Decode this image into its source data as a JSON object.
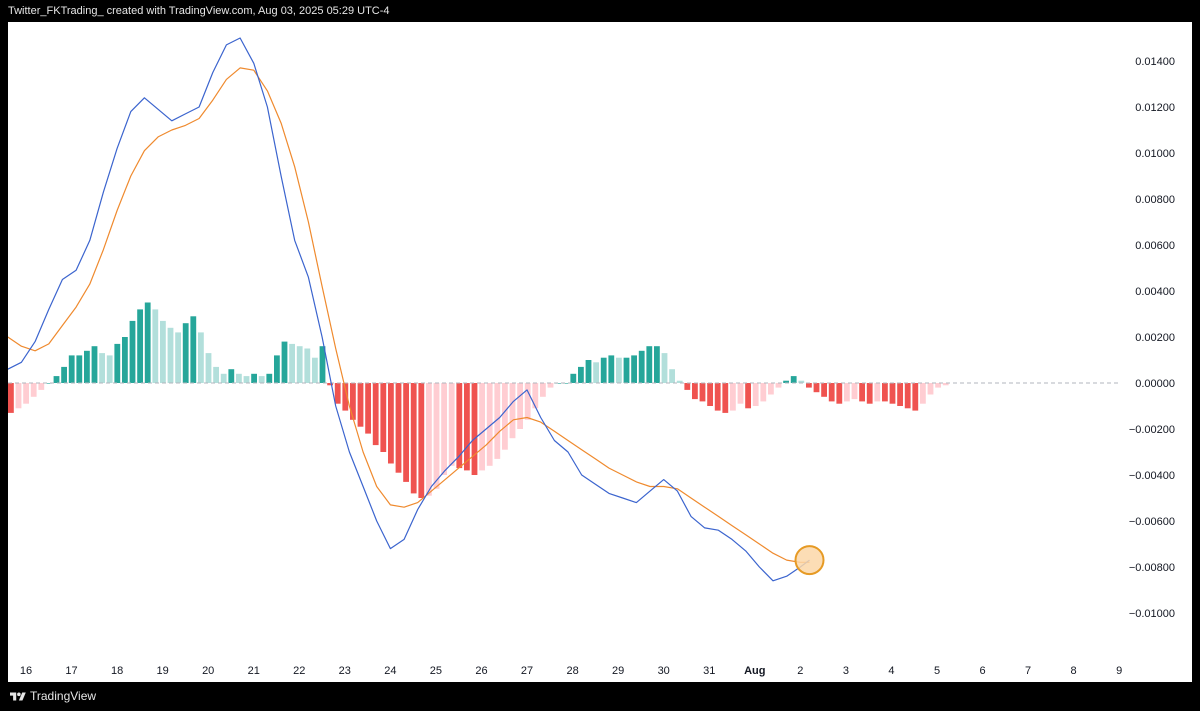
{
  "header": {
    "title": "Twitter_FKTrading_ created with TradingView.com, Aug 03, 2025 05:29 UTC-4"
  },
  "footer": {
    "brand": "TradingView"
  },
  "colors": {
    "macd_line": "#3b64ce",
    "signal_line": "#ef8a2e",
    "hist_pos_strong": "#26a69a",
    "hist_pos_weak": "#b2dfdb",
    "hist_neg_strong": "#ef5350",
    "hist_neg_weak": "#ffcdd2",
    "highlight_fill": "#fbd7a8",
    "highlight_stroke": "#e69a24"
  },
  "chart_data": {
    "type": "line",
    "indicator": "MACD",
    "x_ticks": [
      "16",
      "17",
      "18",
      "19",
      "20",
      "21",
      "22",
      "23",
      "24",
      "25",
      "26",
      "27",
      "28",
      "29",
      "30",
      "31",
      "Aug",
      "2",
      "3",
      "4",
      "5",
      "6",
      "7",
      "8",
      "9"
    ],
    "y_ticks": [
      "0.01400",
      "0.01200",
      "0.01000",
      "0.00800",
      "0.00600",
      "0.00400",
      "0.00200",
      "0.00000",
      "−0.00200",
      "−0.00400",
      "−0.00600",
      "−0.00800",
      "−0.01000"
    ],
    "ylim": [
      -0.0111,
      0.0151
    ],
    "zero_line": true,
    "series": [
      {
        "type": "line",
        "x": [
          15.6,
          15.9,
          16.2,
          16.5,
          16.8,
          17.1,
          17.4,
          17.7,
          18.0,
          18.3,
          18.6,
          18.9,
          19.2,
          19.5,
          19.8,
          20.1,
          20.4,
          20.7,
          21.0,
          21.3,
          21.6,
          21.9,
          22.2,
          22.5,
          22.8,
          23.1,
          23.4,
          23.7,
          24.0,
          24.3,
          24.6,
          24.9,
          25.2,
          25.5,
          25.8,
          26.1,
          26.4,
          26.7,
          27.0,
          27.3,
          27.6,
          27.9,
          28.2,
          28.5,
          28.8,
          29.1,
          29.4,
          29.7,
          30.0,
          30.3,
          30.6,
          30.9,
          31.2,
          31.5,
          31.8,
          32.1,
          32.4,
          32.7,
          33.0,
          33.2
        ],
        "y": [
          0.0006,
          0.0009,
          0.0018,
          0.0032,
          0.0045,
          0.0049,
          0.0062,
          0.0083,
          0.0102,
          0.0118,
          0.0124,
          0.0119,
          0.0114,
          0.0117,
          0.012,
          0.0135,
          0.0147,
          0.015,
          0.0139,
          0.012,
          0.009,
          0.0062,
          0.0046,
          0.002,
          -0.001,
          -0.003,
          -0.0045,
          -0.006,
          -0.0072,
          -0.0068,
          -0.0055,
          -0.0045,
          -0.0038,
          -0.0032,
          -0.0025,
          -0.002,
          -0.0015,
          -0.0008,
          -0.0003,
          -0.0015,
          -0.0025,
          -0.003,
          -0.004,
          -0.0044,
          -0.0048,
          -0.005,
          -0.0052,
          -0.0047,
          -0.0042,
          -0.0047,
          -0.0058,
          -0.0063,
          -0.0064,
          -0.0068,
          -0.0073,
          -0.008,
          -0.0086,
          -0.0084,
          -0.008,
          -0.0077
        ]
      },
      {
        "type": "line",
        "x": [
          15.6,
          15.9,
          16.2,
          16.5,
          16.8,
          17.1,
          17.4,
          17.7,
          18.0,
          18.3,
          18.6,
          18.9,
          19.2,
          19.5,
          19.8,
          20.1,
          20.4,
          20.7,
          21.0,
          21.3,
          21.6,
          21.9,
          22.2,
          22.5,
          22.8,
          23.1,
          23.4,
          23.7,
          24.0,
          24.3,
          24.6,
          24.9,
          25.2,
          25.5,
          25.8,
          26.1,
          26.4,
          26.7,
          27.0,
          27.3,
          27.6,
          27.9,
          28.2,
          28.5,
          28.8,
          29.1,
          29.4,
          29.7,
          30.0,
          30.3,
          30.6,
          30.9,
          31.2,
          31.5,
          31.8,
          32.1,
          32.4,
          32.7,
          33.0,
          33.2
        ],
        "y": [
          0.002,
          0.0016,
          0.0014,
          0.0017,
          0.0025,
          0.0033,
          0.0043,
          0.0058,
          0.0075,
          0.009,
          0.0101,
          0.0107,
          0.011,
          0.0112,
          0.0115,
          0.0123,
          0.0132,
          0.0137,
          0.0136,
          0.0127,
          0.0113,
          0.0094,
          0.007,
          0.0042,
          0.0015,
          -0.001,
          -0.003,
          -0.0045,
          -0.0053,
          -0.0054,
          -0.0052,
          -0.0047,
          -0.0042,
          -0.0037,
          -0.0032,
          -0.0027,
          -0.0021,
          -0.0016,
          -0.0015,
          -0.0017,
          -0.0021,
          -0.0025,
          -0.0029,
          -0.0033,
          -0.0037,
          -0.004,
          -0.0043,
          -0.0045,
          -0.0045,
          -0.0046,
          -0.005,
          -0.0054,
          -0.0058,
          -0.0062,
          -0.0066,
          -0.007,
          -0.0074,
          -0.0077,
          -0.0078,
          -0.0078
        ]
      },
      {
        "type": "bar",
        "values": [
          -0.0013,
          -0.0011,
          -0.0009,
          -0.0006,
          -0.0003,
          0.0,
          0.0003,
          0.0007,
          0.0012,
          0.0012,
          0.0014,
          0.0016,
          0.0013,
          0.0012,
          0.0017,
          0.002,
          0.0027,
          0.0032,
          0.0035,
          0.0032,
          0.0027,
          0.0024,
          0.0022,
          0.0026,
          0.0029,
          0.0022,
          0.0013,
          0.0007,
          0.0004,
          0.0006,
          0.0004,
          0.0003,
          0.0004,
          0.0003,
          0.0004,
          0.0012,
          0.0018,
          0.0017,
          0.0016,
          0.0015,
          0.0011,
          0.0016,
          -0.0001,
          -0.0009,
          -0.0012,
          -0.0016,
          -0.0019,
          -0.0022,
          -0.0027,
          -0.003,
          -0.0035,
          -0.0039,
          -0.0043,
          -0.0048,
          -0.005,
          -0.0049,
          -0.0046,
          -0.004,
          -0.0036,
          -0.0037,
          -0.0038,
          -0.004,
          -0.0038,
          -0.0036,
          -0.0033,
          -0.0029,
          -0.0024,
          -0.002,
          -0.0016,
          -0.0011,
          -0.0006,
          -0.0002,
          0.0,
          0.0,
          0.0004,
          0.0007,
          0.001,
          0.0009,
          0.0011,
          0.0012,
          0.0011,
          0.0011,
          0.0012,
          0.0014,
          0.0016,
          0.0016,
          0.0013,
          0.0006,
          0.0001,
          -0.0003,
          -0.0007,
          -0.0008,
          -0.001,
          -0.0012,
          -0.0013,
          -0.0012,
          -0.0009,
          -0.0011,
          -0.001,
          -0.0008,
          -0.0005,
          -0.0002,
          0.0001,
          0.0003,
          0.0001,
          -0.0002,
          -0.0004,
          -0.0006,
          -0.0008,
          -0.0009,
          -0.0008,
          -0.0007,
          -0.0008,
          -0.0009,
          -0.0008,
          -0.0008,
          -0.0009,
          -0.001,
          -0.0011,
          -0.0012,
          -0.0009,
          -0.0005,
          -0.0002,
          -0.0001
        ]
      }
    ],
    "annotations": [
      "circle marker at last MACD point"
    ]
  }
}
